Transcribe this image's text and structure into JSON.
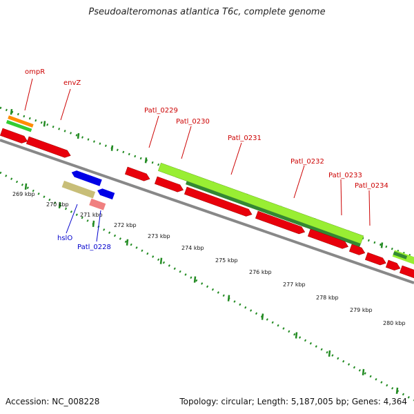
{
  "title": "Pseudoalteromonas atlantica T6c, complete genome",
  "footer": {
    "accession": "Accession: NC_008228",
    "topology": "Topology: circular; Length: 5,187,005 bp; Genes: 4,364"
  },
  "ticks": [
    {
      "label": "269 kbp"
    },
    {
      "label": "270 kbp"
    },
    {
      "label": "271 kbp"
    },
    {
      "label": "272 kbp"
    },
    {
      "label": "273 kbp"
    },
    {
      "label": "274 kbp"
    },
    {
      "label": "275 kbp"
    },
    {
      "label": "276 kbp"
    },
    {
      "label": "277 kbp"
    },
    {
      "label": "278 kbp"
    },
    {
      "label": "279 kbp"
    },
    {
      "label": "280 kbp"
    }
  ],
  "genes_forward": [
    {
      "name": "ompR"
    },
    {
      "name": "envZ"
    },
    {
      "name": "Patl_0229"
    },
    {
      "name": "Patl_0230"
    },
    {
      "name": "Patl_0231"
    },
    {
      "name": "Patl_0232"
    },
    {
      "name": "Patl_0233"
    },
    {
      "name": "Patl_0234"
    }
  ],
  "genes_reverse": [
    {
      "name": "hslO"
    },
    {
      "name": "Patl_0228"
    }
  ],
  "colors": {
    "cds": "#e8000b",
    "gene_blue": "#0000e6",
    "orange": "#ff8c00",
    "green": "#33cc33",
    "light_green": "#99ee33",
    "dark_green": "#338833",
    "khaki": "#c8be78",
    "pink": "#f08080",
    "tick_green": "#228b22",
    "backbone": "#888888"
  }
}
